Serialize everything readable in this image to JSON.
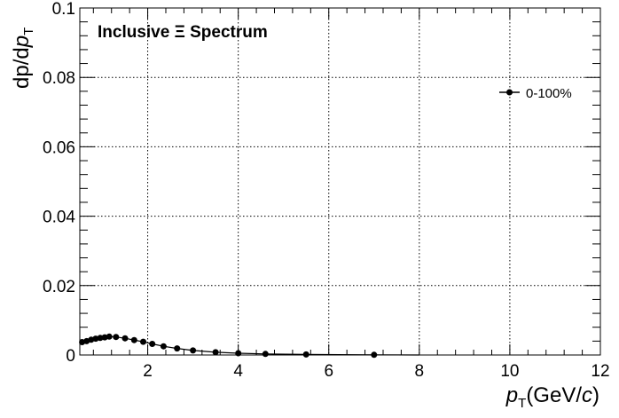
{
  "chart_data": {
    "type": "scatter",
    "title": "Inclusive  Ξ Spectrum",
    "ylabel": "dp/dp_T",
    "xlabel": "p_T(GeV/c)",
    "xlim": [
      0.5,
      12
    ],
    "ylim": [
      0,
      0.1
    ],
    "x_ticks": [
      2,
      4,
      6,
      8,
      10,
      12
    ],
    "x_tick_labels": [
      "2",
      "4",
      "6",
      "8",
      "10",
      "12"
    ],
    "y_ticks": [
      0,
      0.02,
      0.04,
      0.06,
      0.08,
      0.1
    ],
    "y_tick_labels": [
      "0",
      "0.02",
      "0.04",
      "0.06",
      "0.08",
      "0.1"
    ],
    "grid": true,
    "legend_position": "top-right",
    "series": [
      {
        "name": "0-100%",
        "color": "#000000",
        "marker": "circle",
        "x": [
          0.55,
          0.65,
          0.75,
          0.85,
          0.95,
          1.05,
          1.15,
          1.3,
          1.5,
          1.7,
          1.9,
          2.1,
          2.35,
          2.65,
          3.0,
          3.5,
          4.0,
          4.6,
          5.5,
          7.0
        ],
        "y": [
          0.0037,
          0.004,
          0.0044,
          0.0047,
          0.0049,
          0.0051,
          0.0053,
          0.0052,
          0.0048,
          0.0043,
          0.0038,
          0.0032,
          0.0025,
          0.0019,
          0.0013,
          0.0008,
          0.0005,
          0.0003,
          0.00015,
          6e-05
        ]
      }
    ]
  }
}
